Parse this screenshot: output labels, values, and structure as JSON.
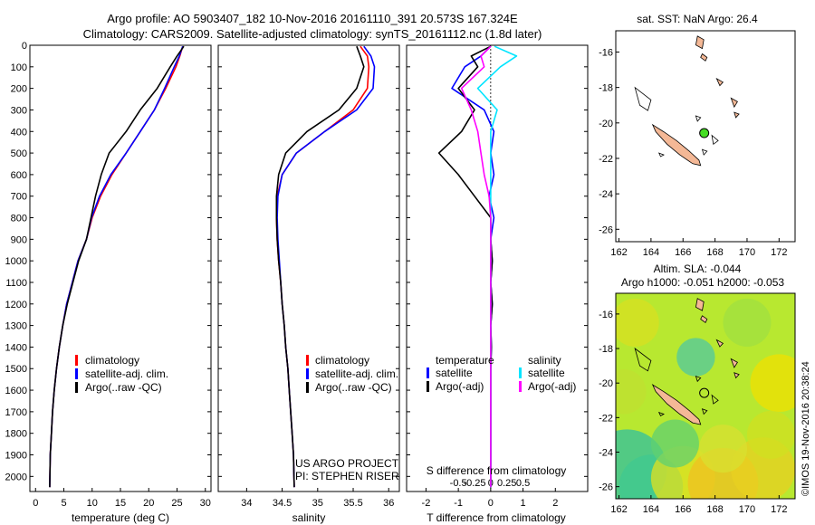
{
  "title_line1": "Argo profile: AO 5903407_182 10-Nov-2016 20161110_391 20.573S 167.324E",
  "title_line2": "Climatology: CARS2009. Satellite-adjusted climatology: synTS_20161112.nc (1.8d later)",
  "colors": {
    "climatology": "#ff0000",
    "satellite": "#0000ff",
    "argo": "#000000",
    "sat_sal": "#00e5ff",
    "argo_sal": "#ff00ff",
    "land": "#f4b896"
  },
  "project": {
    "line1": "US ARGO PROJECT",
    "line2": "PI: STEPHEN RISER"
  },
  "watermark": "©IMOS 19-Nov-2016 20:38:24",
  "chart_data": [
    {
      "type": "line",
      "panel": "temperature",
      "xlabel": "temperature (deg C)",
      "xlim": [
        -1,
        31
      ],
      "ylim": [
        2070,
        0
      ],
      "xticks": [
        "0",
        "5",
        "10",
        "15",
        "20",
        "25",
        "30"
      ],
      "yticks": [
        "0",
        "100",
        "200",
        "300",
        "400",
        "500",
        "600",
        "700",
        "800",
        "900",
        "1000",
        "1100",
        "1200",
        "1300",
        "1400",
        "1500",
        "1600",
        "1700",
        "1800",
        "1900",
        "2000"
      ],
      "legend": [
        "climatology",
        "satellite-adj. clim.",
        "Argo(..raw -QC)"
      ],
      "series": [
        {
          "name": "climatology",
          "x": [
            26,
            25.5,
            24.8,
            23,
            21,
            18.5,
            16,
            13.5,
            11.5,
            10,
            9,
            7.5,
            6.5,
            5.5,
            4.8,
            4.2,
            3.7,
            3.3,
            3,
            2.8,
            2.6,
            2.5
          ],
          "y": [
            5,
            50,
            100,
            200,
            300,
            400,
            500,
            600,
            700,
            800,
            900,
            1000,
            1100,
            1200,
            1300,
            1400,
            1500,
            1600,
            1700,
            1800,
            1900,
            2050
          ]
        },
        {
          "name": "satellite-adj. clim.",
          "x": [
            26,
            25.4,
            24.5,
            22.8,
            21,
            18.5,
            16,
            13.3,
            11.3,
            9.9,
            9,
            7.5,
            6.5,
            5.5,
            4.8,
            4.2,
            3.7,
            3.3,
            3,
            2.8,
            2.6,
            2.5
          ],
          "y": [
            5,
            50,
            100,
            200,
            300,
            400,
            500,
            600,
            700,
            800,
            900,
            1000,
            1100,
            1200,
            1300,
            1400,
            1500,
            1600,
            1700,
            1800,
            1900,
            2050
          ]
        },
        {
          "name": "Argo(..raw -QC)",
          "x": [
            26.2,
            25,
            23.8,
            21.5,
            18.5,
            16,
            13,
            11.6,
            10.6,
            9.8,
            9.0,
            7.6,
            6.6,
            5.6,
            4.8,
            4.2,
            3.7,
            3.3,
            3.0,
            2.8,
            2.6,
            2.5
          ],
          "y": [
            5,
            50,
            100,
            200,
            300,
            400,
            500,
            600,
            700,
            800,
            900,
            1000,
            1100,
            1200,
            1300,
            1400,
            1500,
            1600,
            1700,
            1800,
            1900,
            2050
          ]
        }
      ]
    },
    {
      "type": "line",
      "panel": "salinity",
      "xlabel": "salinity",
      "xlim": [
        33.6,
        36.15
      ],
      "ylim": [
        2070,
        0
      ],
      "xticks": [
        "34",
        "34.5",
        "35",
        "35.5",
        "36"
      ],
      "legend": [
        "climatology",
        "satellite-adj. clim.",
        "Argo(..raw -QC)"
      ],
      "series": [
        {
          "name": "climatology",
          "x": [
            35.6,
            35.7,
            35.72,
            35.7,
            35.5,
            35.1,
            34.7,
            34.5,
            34.43,
            34.42,
            34.43,
            34.45,
            34.48,
            34.5,
            34.53,
            34.55,
            34.58,
            34.6,
            34.62,
            34.64,
            34.66,
            34.67
          ],
          "y": [
            5,
            50,
            100,
            200,
            300,
            400,
            500,
            600,
            700,
            800,
            900,
            1000,
            1100,
            1200,
            1300,
            1400,
            1500,
            1600,
            1700,
            1800,
            1900,
            2050
          ]
        },
        {
          "name": "satellite-adj. clim.",
          "x": [
            35.65,
            35.75,
            35.8,
            35.78,
            35.55,
            35.1,
            34.7,
            34.5,
            34.44,
            34.43,
            34.44,
            34.46,
            34.48,
            34.5,
            34.53,
            34.55,
            34.58,
            34.6,
            34.62,
            34.64,
            34.66,
            34.67
          ],
          "y": [
            5,
            50,
            100,
            200,
            300,
            400,
            500,
            600,
            700,
            800,
            900,
            1000,
            1100,
            1200,
            1300,
            1400,
            1500,
            1600,
            1700,
            1800,
            1900,
            2050
          ]
        },
        {
          "name": "Argo(..raw -QC)",
          "x": [
            35.55,
            35.6,
            35.65,
            35.55,
            35.3,
            34.85,
            34.55,
            34.45,
            34.42,
            34.42,
            34.43,
            34.45,
            34.48,
            34.5,
            34.53,
            34.55,
            34.58,
            34.6,
            34.62,
            34.64,
            34.66,
            34.67
          ],
          "y": [
            5,
            50,
            100,
            200,
            300,
            400,
            500,
            600,
            700,
            800,
            900,
            1000,
            1100,
            1200,
            1300,
            1400,
            1500,
            1600,
            1700,
            1800,
            1900,
            2050
          ]
        }
      ]
    },
    {
      "type": "line",
      "panel": "difference",
      "xlabel": "T difference from climatology",
      "xlabel2": "S difference from climatology",
      "xlim": [
        -2.6,
        3.0
      ],
      "ylim": [
        2070,
        0
      ],
      "xticks": [
        "-2",
        "-1",
        "0",
        "1",
        "2"
      ],
      "xticks2": [
        "-0.5",
        "-0.25",
        "0",
        "0.25",
        "0.5"
      ],
      "legend_temperature": "temperature",
      "legend_salinity": "salinity",
      "legend": [
        "satellite",
        "Argo(-adj)",
        "satellite",
        "Argo(-adj)"
      ],
      "series": [
        {
          "name": "temperature satellite",
          "x": [
            0,
            -0.3,
            -0.8,
            -1.2,
            -0.2,
            0.1,
            0,
            0.1,
            -0.05,
            0.1,
            0,
            0.05,
            0,
            0.05,
            0,
            0.02,
            0,
            0,
            0,
            0,
            0,
            0
          ],
          "y": [
            5,
            50,
            100,
            200,
            300,
            400,
            500,
            600,
            700,
            800,
            900,
            1000,
            1100,
            1200,
            1300,
            1400,
            1500,
            1600,
            1700,
            1800,
            1900,
            2050
          ]
        },
        {
          "name": "temperature Argo(-adj)",
          "x": [
            0,
            -0.6,
            -0.4,
            -1.0,
            -0.5,
            -0.9,
            -1.6,
            -1.0,
            -0.5,
            0,
            0,
            0.05,
            0,
            0.05,
            0,
            0.02,
            0,
            0,
            0,
            0,
            0,
            0
          ],
          "y": [
            5,
            50,
            100,
            200,
            300,
            400,
            500,
            600,
            700,
            800,
            900,
            1000,
            1100,
            1200,
            1300,
            1400,
            1500,
            1600,
            1700,
            1800,
            1900,
            2050
          ]
        },
        {
          "name": "salinity satellite",
          "x": [
            0.12,
            0.8,
            0.3,
            -0.4,
            0.2,
            0,
            0,
            0,
            0,
            0,
            0,
            0,
            0,
            0,
            0,
            0,
            0,
            0,
            0,
            0,
            0,
            0
          ],
          "y": [
            5,
            50,
            100,
            200,
            300,
            400,
            500,
            600,
            700,
            800,
            900,
            1000,
            1100,
            1200,
            1300,
            1400,
            1500,
            1600,
            1700,
            1800,
            1900,
            2050
          ]
        },
        {
          "name": "salinity Argo(-adj)",
          "x": [
            0,
            -0.3,
            -0.2,
            -0.9,
            -0.6,
            -0.4,
            -0.3,
            -0.2,
            -0.05,
            0,
            0,
            0,
            0,
            0,
            0,
            0,
            0,
            0,
            0,
            0,
            0,
            0
          ],
          "y": [
            5,
            50,
            100,
            200,
            300,
            400,
            500,
            600,
            700,
            800,
            900,
            1000,
            1100,
            1200,
            1300,
            1400,
            1500,
            1600,
            1700,
            1800,
            1900,
            2050
          ]
        }
      ]
    },
    {
      "type": "map",
      "panel": "sst",
      "title": "sat. SST: NaN Argo: 26.4",
      "xlim": [
        161.8,
        173
      ],
      "ylim": [
        -26.7,
        -14.8
      ],
      "xticks": [
        "162",
        "164",
        "166",
        "168",
        "170",
        "172"
      ],
      "yticks": [
        "-16",
        "-18",
        "-20",
        "-22",
        "-24",
        "-26"
      ],
      "argo_position": [
        167.324,
        -20.573
      ]
    },
    {
      "type": "heatmap",
      "panel": "sla",
      "title": "Altim. SLA: -0.044",
      "subtitle": "Argo h1000: -0.051 h2000: -0.053",
      "xlim": [
        161.8,
        173
      ],
      "ylim": [
        -26.7,
        -14.8
      ],
      "xticks": [
        "162",
        "164",
        "166",
        "168",
        "170",
        "172"
      ],
      "yticks": [
        "-16",
        "-18",
        "-20",
        "-22",
        "-24",
        "-26"
      ],
      "argo_position": [
        167.324,
        -20.573
      ]
    }
  ]
}
